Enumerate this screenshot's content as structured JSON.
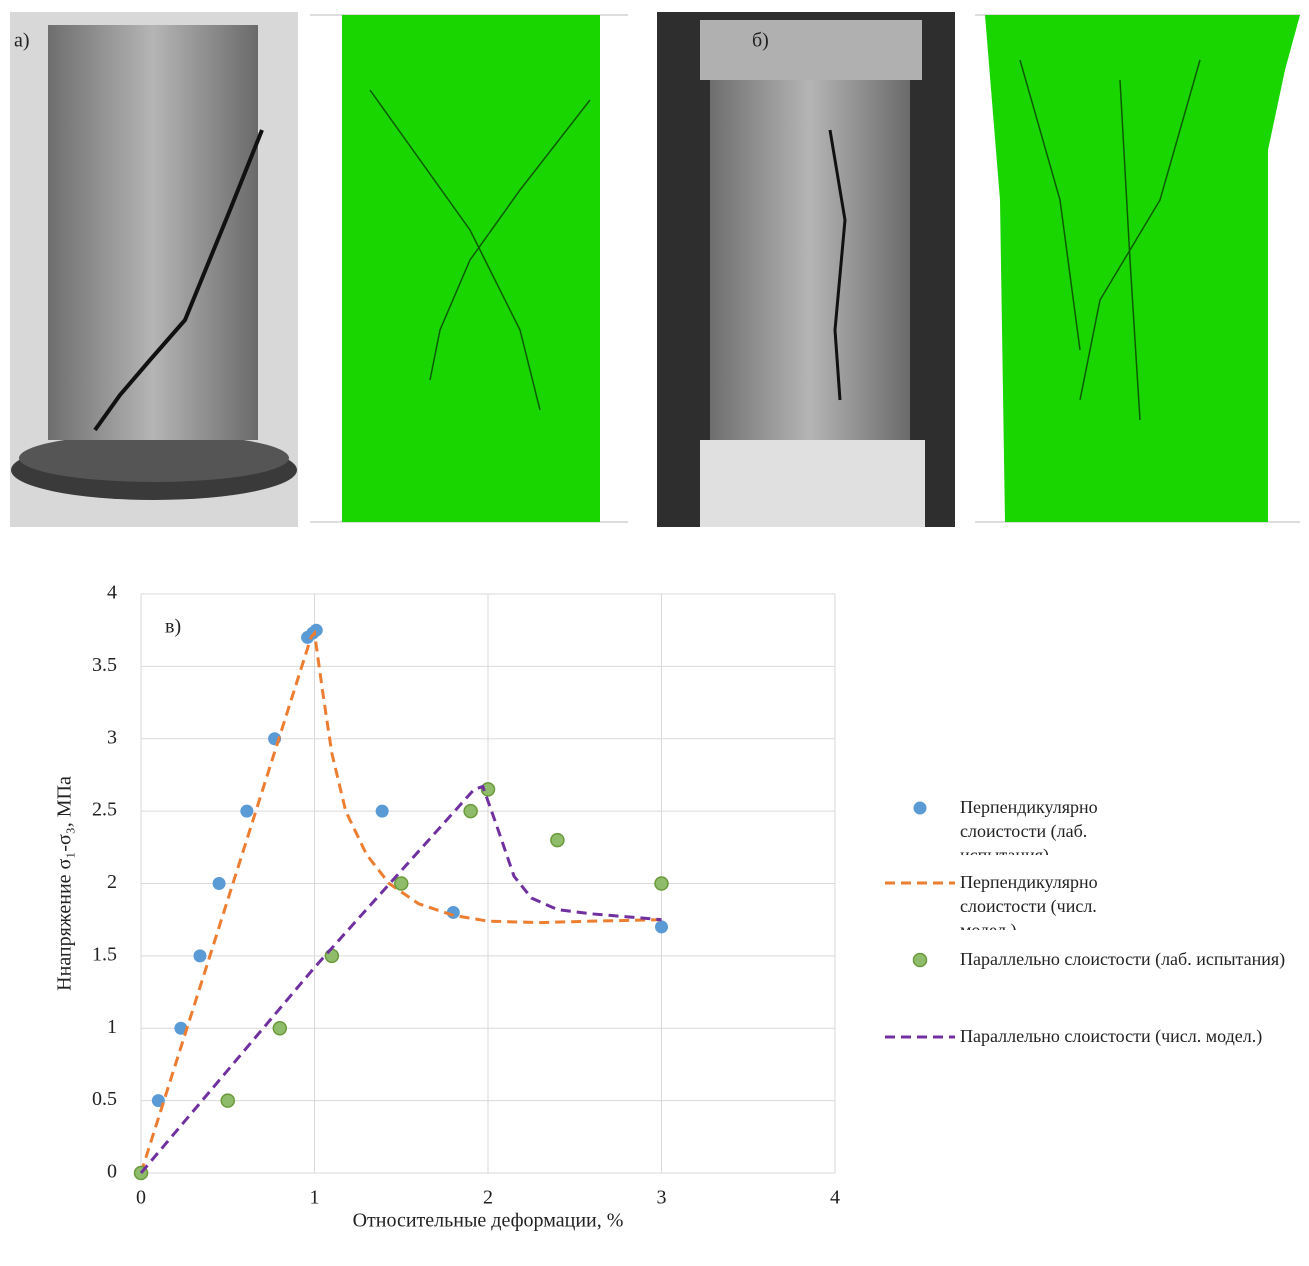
{
  "panels": {
    "a": "а)",
    "b": "б)"
  },
  "chart_data": {
    "type": "scatter",
    "annotation": "в)",
    "x_label": "Относительные деформации, %",
    "y_label": "Ннапряжение σ₁-σ₃, МПа",
    "xlim": [
      0,
      4
    ],
    "xticks": [
      0,
      1,
      2,
      3,
      4
    ],
    "ylim": [
      0,
      4
    ],
    "yticks": [
      0,
      0.5,
      1,
      1.5,
      2,
      2.5,
      3,
      3.5,
      4
    ],
    "grid": true,
    "legend": "right",
    "series": [
      {
        "name": "Перпендикулярно слоистости (лаб. испытания)",
        "color": "#5b9bd5",
        "mode": "markers",
        "x": [
          0,
          0.1,
          0.23,
          0.34,
          0.45,
          0.61,
          0.77,
          0.96,
          0.99,
          1.01,
          1.39,
          1.8,
          3.0
        ],
        "values": [
          0,
          0.5,
          1,
          1.5,
          2,
          2.5,
          3,
          3.7,
          3.73,
          3.75,
          2.5,
          1.8,
          1.7
        ]
      },
      {
        "name": "Перпендикулярно слоистости (числ. модел.)",
        "color": "#ed7d31",
        "mode": "dashed",
        "x": [
          0,
          0.98,
          1.0,
          1.05,
          1.1,
          1.18,
          1.3,
          1.43,
          1.6,
          1.8,
          2.0,
          2.3,
          2.6,
          3.0
        ],
        "values": [
          0,
          3.7,
          3.73,
          3.3,
          2.9,
          2.5,
          2.2,
          2.0,
          1.86,
          1.78,
          1.74,
          1.73,
          1.74,
          1.75
        ]
      },
      {
        "name": "Параллельно слоистости (лаб. испытания)",
        "color": "#8fbc6b",
        "mode": "markers",
        "x": [
          0,
          0.5,
          0.8,
          1.1,
          1.5,
          1.9,
          2.0,
          2.4,
          3.0
        ],
        "values": [
          0,
          0.5,
          1,
          1.5,
          2,
          2.5,
          2.65,
          2.3,
          2.0
        ]
      },
      {
        "name": "Параллельно слоистости (числ. модел.)",
        "color": "#7030a0",
        "mode": "dashed",
        "x": [
          0,
          1.0,
          1.92,
          1.97,
          2.05,
          2.15,
          2.25,
          2.4,
          2.6,
          3.0
        ],
        "values": [
          0,
          1.42,
          2.65,
          2.67,
          2.4,
          2.05,
          1.9,
          1.82,
          1.79,
          1.75
        ]
      }
    ]
  }
}
